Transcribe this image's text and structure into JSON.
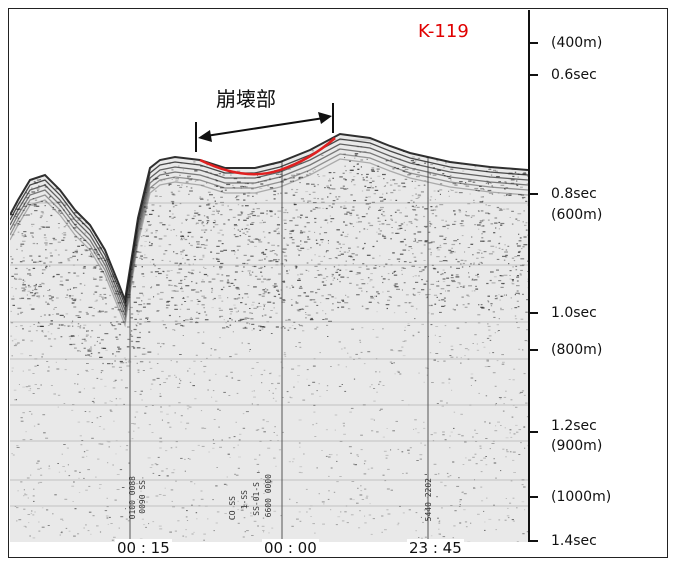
{
  "profile": {
    "line_id": "K-119",
    "collapse_label": "崩壊部",
    "line_id_color": "#e00000",
    "collapse_curve_color": "#e02020"
  },
  "scale": {
    "labels": [
      "(400m)",
      "0.6sec",
      "0.8sec",
      "(600m)",
      "1.0sec",
      "(800m)",
      "1.2sec",
      "(900m)",
      "(1000m)",
      "1.4sec"
    ]
  },
  "time_axis": {
    "labels": [
      "00 : 15",
      "00 : 00",
      "23 : 45"
    ]
  },
  "trace_annotations": [
    "0100 0088",
    "0090 SS",
    "CO SS",
    "1-SS",
    "SS-01-S",
    "6600 0000",
    "5440 2202"
  ]
}
